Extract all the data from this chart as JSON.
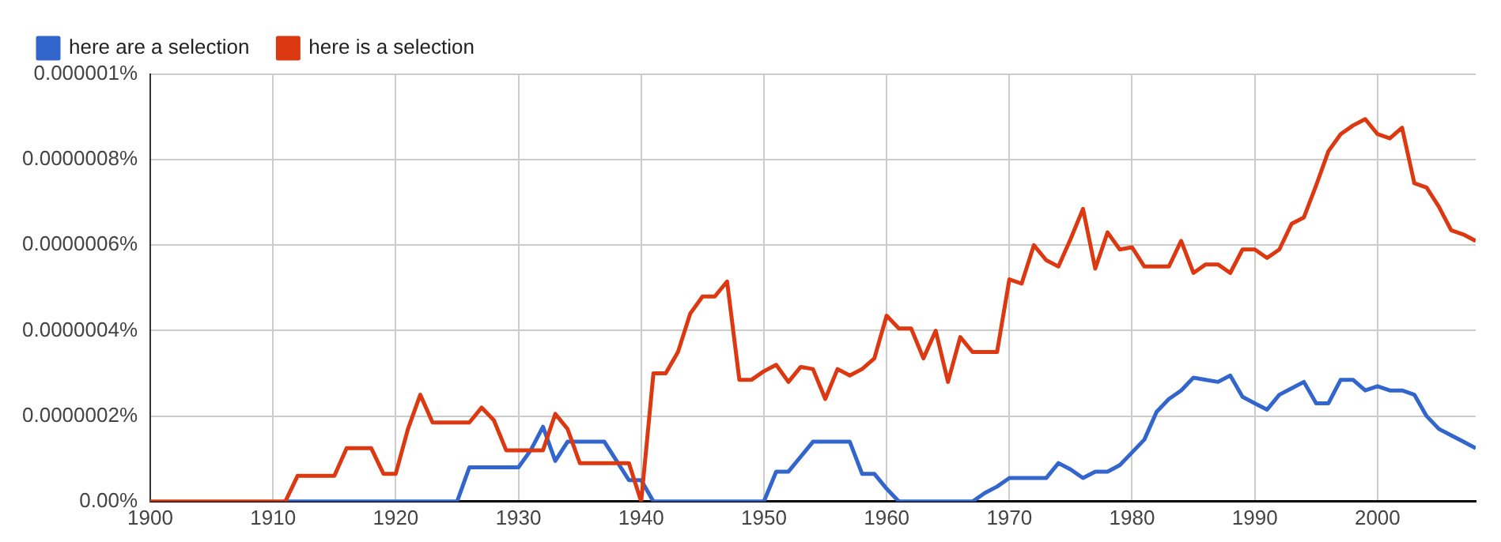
{
  "chart_data": {
    "type": "line",
    "x": [
      1900,
      1901,
      1902,
      1903,
      1904,
      1905,
      1906,
      1907,
      1908,
      1909,
      1910,
      1911,
      1912,
      1913,
      1914,
      1915,
      1916,
      1917,
      1918,
      1919,
      1920,
      1921,
      1922,
      1923,
      1924,
      1925,
      1926,
      1927,
      1928,
      1929,
      1930,
      1931,
      1932,
      1933,
      1934,
      1935,
      1936,
      1937,
      1938,
      1939,
      1940,
      1941,
      1942,
      1943,
      1944,
      1945,
      1946,
      1947,
      1948,
      1949,
      1950,
      1951,
      1952,
      1953,
      1954,
      1955,
      1956,
      1957,
      1958,
      1959,
      1960,
      1961,
      1962,
      1963,
      1964,
      1965,
      1966,
      1967,
      1968,
      1969,
      1970,
      1971,
      1972,
      1973,
      1974,
      1975,
      1976,
      1977,
      1978,
      1979,
      1980,
      1981,
      1982,
      1983,
      1984,
      1985,
      1986,
      1987,
      1988,
      1989,
      1990,
      1991,
      1992,
      1993,
      1994,
      1995,
      1996,
      1997,
      1998,
      1999,
      2000,
      2001,
      2002,
      2003,
      2004,
      2005,
      2006,
      2007,
      2008
    ],
    "series": [
      {
        "name": "here are a selection",
        "color": "#3366cc",
        "values": [
          null,
          null,
          null,
          null,
          null,
          null,
          null,
          null,
          null,
          null,
          null,
          0,
          0,
          0,
          0,
          0,
          0,
          0,
          0,
          0,
          0,
          0,
          0,
          0,
          0,
          0,
          8e-08,
          8e-08,
          8e-08,
          8e-08,
          8e-08,
          1.2e-07,
          1.75e-07,
          9.5e-08,
          1.4e-07,
          1.4e-07,
          1.4e-07,
          1.4e-07,
          9.5e-08,
          5e-08,
          5e-08,
          0,
          0,
          0,
          0,
          0,
          0,
          0,
          0,
          0,
          0,
          7e-08,
          7e-08,
          1.05e-07,
          1.4e-07,
          1.4e-07,
          1.4e-07,
          1.4e-07,
          6.5e-08,
          6.5e-08,
          3e-08,
          0,
          0,
          0,
          0,
          0,
          0,
          0,
          2e-08,
          3.5e-08,
          5.5e-08,
          5.5e-08,
          5.5e-08,
          5.5e-08,
          9e-08,
          7.5e-08,
          5.5e-08,
          7e-08,
          7e-08,
          8.5e-08,
          1.15e-07,
          1.45e-07,
          2.1e-07,
          2.4e-07,
          2.6e-07,
          2.9e-07,
          2.85e-07,
          2.8e-07,
          2.95e-07,
          2.45e-07,
          2.3e-07,
          2.15e-07,
          2.5e-07,
          2.65e-07,
          2.8e-07,
          2.3e-07,
          2.3e-07,
          2.85e-07,
          2.85e-07,
          2.6e-07,
          2.7e-07,
          2.6e-07,
          2.6e-07,
          2.5e-07,
          2e-07,
          1.7e-07,
          1.55e-07,
          1.4e-07,
          1.25e-07
        ]
      },
      {
        "name": "here is a selection",
        "color": "#dc3912",
        "values": [
          0,
          0,
          0,
          0,
          0,
          0,
          0,
          0,
          0,
          0,
          0,
          0,
          6e-08,
          6e-08,
          6e-08,
          6e-08,
          1.25e-07,
          1.25e-07,
          1.25e-07,
          6.5e-08,
          6.5e-08,
          1.7e-07,
          2.5e-07,
          1.85e-07,
          1.85e-07,
          1.85e-07,
          1.85e-07,
          2.2e-07,
          1.9e-07,
          1.2e-07,
          1.2e-07,
          1.2e-07,
          1.2e-07,
          2.05e-07,
          1.7e-07,
          9e-08,
          9e-08,
          9e-08,
          9e-08,
          9e-08,
          0,
          3e-07,
          3e-07,
          3.5e-07,
          4.4e-07,
          4.8e-07,
          4.8e-07,
          5.15e-07,
          2.85e-07,
          2.85e-07,
          3.05e-07,
          3.2e-07,
          2.8e-07,
          3.15e-07,
          3.1e-07,
          2.4e-07,
          3.1e-07,
          2.95e-07,
          3.1e-07,
          3.35e-07,
          4.35e-07,
          4.05e-07,
          4.05e-07,
          3.35e-07,
          4e-07,
          2.8e-07,
          3.85e-07,
          3.5e-07,
          3.5e-07,
          3.5e-07,
          5.2e-07,
          5.1e-07,
          6e-07,
          5.65e-07,
          5.5e-07,
          6.15e-07,
          6.85e-07,
          5.45e-07,
          6.3e-07,
          5.9e-07,
          5.95e-07,
          5.5e-07,
          5.5e-07,
          5.5e-07,
          6.1e-07,
          5.35e-07,
          5.55e-07,
          5.55e-07,
          5.35e-07,
          5.9e-07,
          5.9e-07,
          5.7e-07,
          5.9e-07,
          6.5e-07,
          6.65e-07,
          7.4e-07,
          8.2e-07,
          8.6e-07,
          8.8e-07,
          8.95e-07,
          8.6e-07,
          8.5e-07,
          8.75e-07,
          7.45e-07,
          7.35e-07,
          6.9e-07,
          6.35e-07,
          6.25e-07,
          6.1e-07
        ]
      }
    ],
    "xlim": [
      1900,
      2008
    ],
    "xticks": [
      1900,
      1910,
      1920,
      1930,
      1940,
      1950,
      1960,
      1970,
      1980,
      1990,
      2000
    ],
    "ylim": [
      0,
      1e-06
    ],
    "yticks": [
      {
        "value": 0,
        "label": "0.00%"
      },
      {
        "value": 2e-07,
        "label": "0.0000002%"
      },
      {
        "value": 4e-07,
        "label": "0.0000004%"
      },
      {
        "value": 6e-07,
        "label": "0.0000006%"
      },
      {
        "value": 8e-07,
        "label": "0.0000008%"
      },
      {
        "value": 1e-06,
        "label": "0.000001%"
      }
    ],
    "grid": true,
    "legend": "top left",
    "marker": "none",
    "line_style": "solid"
  }
}
